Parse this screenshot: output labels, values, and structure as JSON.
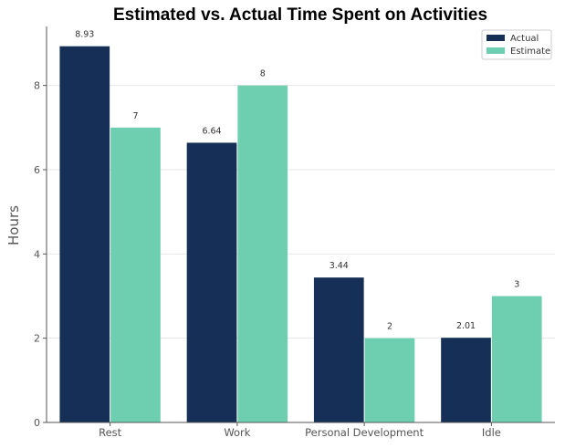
{
  "chart_data": {
    "type": "bar",
    "title": "Estimated vs. Actual Time Spent on Activities",
    "xlabel": "",
    "ylabel": "Hours",
    "categories": [
      "Rest",
      "Work",
      "Personal Development",
      "Idle"
    ],
    "series": [
      {
        "name": "Actual",
        "values": [
          8.93,
          6.64,
          3.44,
          2.01
        ],
        "labels": [
          "8.93",
          "6.64",
          "3.44",
          "2.01"
        ],
        "color": "#152f56"
      },
      {
        "name": "Estimate",
        "values": [
          7,
          8,
          2,
          3
        ],
        "labels": [
          "7",
          "8",
          "2",
          "3"
        ],
        "color": "#6ecfb0"
      }
    ],
    "ylim": [
      0,
      9.4
    ],
    "yticks": [
      0,
      2,
      4,
      6,
      8
    ],
    "ytick_labels": [
      "0",
      "2",
      "4",
      "6",
      "8"
    ],
    "grid": true,
    "legend": "top-right"
  }
}
